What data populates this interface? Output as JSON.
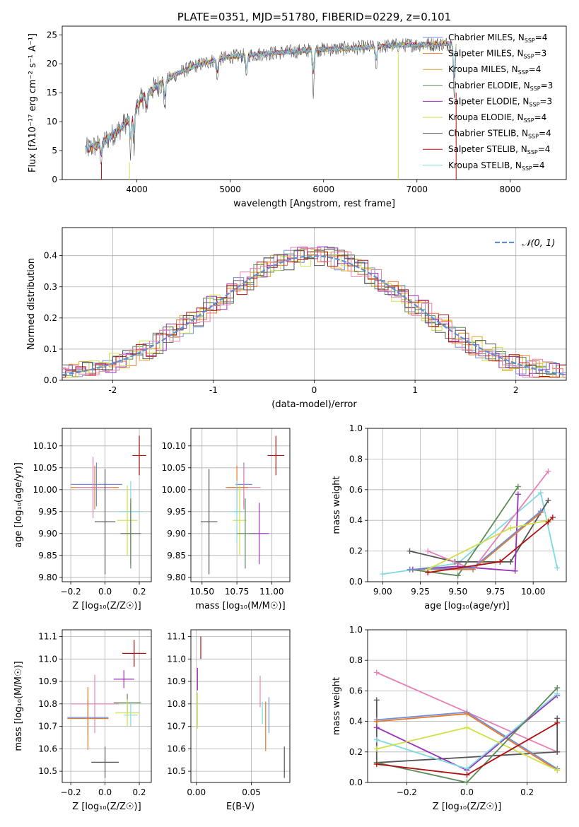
{
  "colors": {
    "chabrier_miles": "#6f8fd8",
    "salpeter_miles": "#e8782c",
    "kroupa_miles": "#e8a230",
    "chabrier_elodie": "#5e8a5a",
    "salpeter_elodie": "#9b30b8",
    "kroupa_elodie": "#cfe045",
    "chabrier_stelib": "#555555",
    "salpeter_stelib": "#b01010",
    "kroupa_stelib": "#80d8e0",
    "pink": "#e880b8",
    "normal": "#5f8fcf"
  },
  "chart_data": [
    {
      "id": "spectrum",
      "type": "line",
      "title": "PLATE=0351, MJD=51780, FIBERID=0229, z=0.101",
      "xlabel": "wavelength [Angstrom, rest frame]",
      "ylabel": "Flux [fλ10⁻¹⁷ erg cm⁻² s⁻¹ A⁻¹]",
      "xlim": [
        3200,
        8600
      ],
      "ylim": [
        0,
        26.5
      ],
      "xticks": [
        4000,
        5000,
        6000,
        7000,
        8000
      ],
      "yticks": [
        0,
        5,
        10,
        15,
        20,
        25
      ],
      "grid": false,
      "legend_position": "top-right",
      "legend": [
        {
          "label": "Chabrier MILES, N",
          "sub": "SSP",
          "tail": "=4",
          "color": "chabrier_miles"
        },
        {
          "label": "Salpeter MILES, N",
          "sub": "SSP",
          "tail": "=3",
          "color": "salpeter_miles"
        },
        {
          "label": "Kroupa MILES, N",
          "sub": "SSP",
          "tail": "=4",
          "color": "kroupa_miles"
        },
        {
          "label": "Chabrier ELODIE, N",
          "sub": "SSP",
          "tail": "=3",
          "color": "chabrier_elodie"
        },
        {
          "label": "Salpeter ELODIE, N",
          "sub": "SSP",
          "tail": "=3",
          "color": "salpeter_elodie"
        },
        {
          "label": "Kroupa ELODIE, N",
          "sub": "SSP",
          "tail": "=4",
          "color": "kroupa_elodie"
        },
        {
          "label": "Chabrier STELIB, N",
          "sub": "SSP",
          "tail": "=4",
          "color": "chabrier_stelib"
        },
        {
          "label": "Salpeter STELIB, N",
          "sub": "SSP",
          "tail": "=4",
          "color": "salpeter_stelib"
        },
        {
          "label": "Kroupa STELIB, N",
          "sub": "SSP",
          "tail": "=4",
          "color": "kroupa_stelib"
        }
      ],
      "continuum": [
        [
          3450,
          5.2
        ],
        [
          3600,
          6.0
        ],
        [
          3800,
          8.5
        ],
        [
          3950,
          11.0
        ],
        [
          4050,
          14.0
        ],
        [
          4200,
          16.0
        ],
        [
          4400,
          18.0
        ],
        [
          4600,
          19.5
        ],
        [
          4800,
          20.5
        ],
        [
          5000,
          21.2
        ],
        [
          5200,
          21.5
        ],
        [
          5400,
          21.8
        ],
        [
          5600,
          22.0
        ],
        [
          5800,
          22.3
        ],
        [
          6000,
          22.5
        ],
        [
          6200,
          22.6
        ],
        [
          6400,
          22.8
        ],
        [
          6600,
          23.0
        ],
        [
          6800,
          23.2
        ],
        [
          7000,
          23.3
        ],
        [
          7200,
          23.4
        ],
        [
          7400,
          23.5
        ]
      ],
      "dips": [
        [
          3620,
          2.5
        ],
        [
          3933,
          5.0
        ],
        [
          3969,
          4.5
        ],
        [
          4102,
          3.0
        ],
        [
          4300,
          4.0
        ],
        [
          4861,
          3.0
        ],
        [
          5175,
          3.5
        ],
        [
          5890,
          5.5
        ],
        [
          6563,
          3.0
        ],
        [
          7400,
          8.0
        ]
      ],
      "drop_lines": [
        {
          "x": 3920,
          "y_top": 3.0,
          "color": "kroupa_elodie"
        },
        {
          "x": 6800,
          "y_top": 22.0,
          "color": "kroupa_elodie"
        },
        {
          "x": 7420,
          "y_top": 15.0,
          "color": "salpeter_stelib"
        },
        {
          "x": 3620,
          "y_top": 3.0,
          "color": "salpeter_stelib"
        }
      ]
    },
    {
      "id": "residuals",
      "type": "histogram",
      "xlabel": "(data-model)/error",
      "ylabel": "Normed distribution",
      "xlim": [
        -2.5,
        2.5
      ],
      "ylim": [
        0,
        0.49
      ],
      "xticks": [
        -2,
        -1,
        0,
        1,
        2
      ],
      "yticks": [
        0.0,
        0.1,
        0.2,
        0.3,
        0.4
      ],
      "grid": true,
      "bin_width": 0.1,
      "legend": [
        {
          "label": "𝒩(0, 1)",
          "color": "normal",
          "style": "dashed"
        }
      ],
      "legend_position": "top-right"
    },
    {
      "id": "age-vs-Z",
      "type": "errorbar",
      "xlabel": "Z [log₁₀(Z/Z☉)]",
      "ylabel": "age  [log₁₀(age/yr)]",
      "xlim": [
        -0.25,
        0.27
      ],
      "ylim": [
        9.79,
        10.14
      ],
      "xticks": [
        -0.2,
        0.0,
        0.2
      ],
      "xticklabels": [
        "−0.2",
        "0.0",
        "0.2"
      ],
      "yticks": [
        9.8,
        9.85,
        9.9,
        9.95,
        10.0,
        10.05,
        10.1
      ],
      "yticklabels": [
        "9.80",
        "9.85",
        "9.90",
        "9.95",
        "10.00",
        "10.05",
        "10.10"
      ],
      "grid": true,
      "points": [
        {
          "x": 0.2,
          "xerr": 0.04,
          "y": 10.078,
          "yerr": 0.045,
          "color": "salpeter_stelib"
        },
        {
          "x": -0.05,
          "xerr": 0.15,
          "y": 10.012,
          "yerr": 0.05,
          "color": "chabrier_miles"
        },
        {
          "x": -0.06,
          "xerr": 0.14,
          "y": 10.005,
          "yerr": 0.05,
          "color": "salpeter_miles"
        },
        {
          "x": -0.07,
          "xerr": 0.1,
          "y": 10.005,
          "yerr": 0.07,
          "color": "pink"
        },
        {
          "x": 0.15,
          "xerr": 0.07,
          "y": 9.95,
          "yerr": 0.07,
          "color": "kroupa_stelib"
        },
        {
          "x": 0.13,
          "xerr": 0.06,
          "y": 9.93,
          "yerr": 0.08,
          "color": "kroupa_elodie"
        },
        {
          "x": 0.15,
          "xerr": 0.06,
          "y": 9.9,
          "yerr": 0.07,
          "color": "salpeter_elodie"
        },
        {
          "x": 0.15,
          "xerr": 0.05,
          "y": 9.9,
          "yerr": 0.08,
          "color": "chabrier_elodie"
        },
        {
          "x": 0.0,
          "xerr": 0.06,
          "y": 9.927,
          "yerr": 0.12,
          "color": "chabrier_stelib"
        }
      ]
    },
    {
      "id": "age-vs-mass",
      "type": "errorbar",
      "xlabel": "mass [log₁₀(M/M☉)]",
      "ylabel": "",
      "xlim": [
        10.42,
        11.13
      ],
      "ylim": [
        9.79,
        10.14
      ],
      "xticks": [
        10.5,
        10.75,
        11.0
      ],
      "xticklabels": [
        "10.50",
        "10.75",
        "11.00"
      ],
      "yticks": [
        9.8,
        9.85,
        9.9,
        9.95,
        10.0,
        10.05,
        10.1
      ],
      "yticklabels": [
        "9.80",
        "9.85",
        "9.90",
        "9.95",
        "10.00",
        "10.05",
        "10.10"
      ],
      "grid": true,
      "points": [
        {
          "x": 11.03,
          "xerr": 0.06,
          "y": 10.078,
          "yerr": 0.045,
          "color": "salpeter_stelib"
        },
        {
          "x": 10.8,
          "xerr": 0.06,
          "y": 10.012,
          "yerr": 0.05,
          "color": "chabrier_miles"
        },
        {
          "x": 10.8,
          "xerr": 0.12,
          "y": 10.005,
          "yerr": 0.05,
          "color": "pink"
        },
        {
          "x": 10.75,
          "xerr": 0.08,
          "y": 10.005,
          "yerr": 0.05,
          "color": "salpeter_miles"
        },
        {
          "x": 10.75,
          "xerr": 0.04,
          "y": 9.95,
          "yerr": 0.07,
          "color": "kroupa_stelib"
        },
        {
          "x": 10.77,
          "xerr": 0.05,
          "y": 9.93,
          "yerr": 0.08,
          "color": "kroupa_elodie"
        },
        {
          "x": 10.91,
          "xerr": 0.07,
          "y": 9.9,
          "yerr": 0.07,
          "color": "salpeter_elodie"
        },
        {
          "x": 10.81,
          "xerr": 0.06,
          "y": 9.9,
          "yerr": 0.08,
          "color": "chabrier_elodie"
        },
        {
          "x": 10.55,
          "xerr": 0.06,
          "y": 9.927,
          "yerr": 0.12,
          "color": "chabrier_stelib"
        }
      ]
    },
    {
      "id": "massweight-vs-age",
      "type": "line",
      "xlabel": "age  [log₁₀(age/yr)]",
      "ylabel": "mass weight",
      "xlim": [
        8.9,
        10.22
      ],
      "ylim": [
        0.0,
        1.0
      ],
      "xticks": [
        9.0,
        9.25,
        9.5,
        9.75,
        10.0
      ],
      "xticklabels": [
        "9.00",
        "9.25",
        "9.50",
        "9.75",
        "10.00"
      ],
      "yticks": [
        0.0,
        0.2,
        0.4,
        0.6,
        0.8,
        1.0
      ],
      "grid": true,
      "series": [
        {
          "color": "kroupa_stelib",
          "x": [
            9.0,
            9.5,
            10.05,
            10.16
          ],
          "y": [
            0.05,
            0.12,
            0.58,
            0.09
          ]
        },
        {
          "color": "chabrier_stelib",
          "x": [
            9.18,
            9.48,
            9.85,
            10.1
          ],
          "y": [
            0.2,
            0.13,
            0.13,
            0.53
          ]
        },
        {
          "color": "pink",
          "x": [
            9.3,
            9.6,
            10.1
          ],
          "y": [
            0.2,
            0.08,
            0.72
          ]
        },
        {
          "color": "chabrier_elodie",
          "x": [
            9.18,
            9.5,
            9.9
          ],
          "y": [
            0.08,
            0.04,
            0.62
          ]
        },
        {
          "color": "salpeter_elodie",
          "x": [
            9.2,
            9.5,
            9.88,
            9.9
          ],
          "y": [
            0.08,
            0.1,
            0.07,
            0.57
          ]
        },
        {
          "color": "salpeter_miles",
          "x": [
            9.18,
            9.6,
            10.05
          ],
          "y": [
            0.08,
            0.08,
            0.45
          ]
        },
        {
          "color": "chabrier_miles",
          "x": [
            9.18,
            9.6,
            10.05
          ],
          "y": [
            0.08,
            0.09,
            0.46
          ]
        },
        {
          "color": "kroupa_elodie",
          "x": [
            9.3,
            9.85,
            10.1
          ],
          "y": [
            0.08,
            0.35,
            0.4
          ]
        },
        {
          "color": "salpeter_stelib",
          "x": [
            9.3,
            9.78,
            10.1,
            10.13
          ],
          "y": [
            0.06,
            0.13,
            0.39,
            0.42
          ]
        }
      ]
    },
    {
      "id": "mass-vs-Z",
      "type": "errorbar",
      "xlabel": "Z [log₁₀(Z/Z☉)]",
      "ylabel": "mass [log₁₀(M/M☉)]",
      "xlim": [
        -0.25,
        0.27
      ],
      "ylim": [
        10.45,
        11.13
      ],
      "xticks": [
        -0.2,
        0.0,
        0.2
      ],
      "xticklabels": [
        "−0.2",
        "0.0",
        "0.2"
      ],
      "yticks": [
        10.5,
        10.6,
        10.7,
        10.8,
        10.9,
        11.0,
        11.1
      ],
      "yticklabels": [
        "10.5",
        "10.6",
        "10.7",
        "10.8",
        "10.9",
        "11.0",
        "11.1"
      ],
      "grid": true,
      "points": [
        {
          "x": 0.17,
          "xerr": 0.07,
          "y": 11.025,
          "yerr": 0.06,
          "color": "salpeter_stelib"
        },
        {
          "x": 0.11,
          "xerr": 0.06,
          "y": 10.91,
          "yerr": 0.04,
          "color": "salpeter_elodie"
        },
        {
          "x": -0.06,
          "xerr": 0.14,
          "y": 10.8,
          "yerr": 0.13,
          "color": "pink"
        },
        {
          "x": 0.13,
          "xerr": 0.08,
          "y": 10.805,
          "yerr": 0.04,
          "color": "chabrier_elodie"
        },
        {
          "x": 0.15,
          "xerr": 0.04,
          "y": 10.75,
          "yerr": 0.05,
          "color": "kroupa_stelib"
        },
        {
          "x": 0.13,
          "xerr": 0.07,
          "y": 10.76,
          "yerr": 0.06,
          "color": "kroupa_elodie"
        },
        {
          "x": -0.1,
          "xerr": 0.12,
          "y": 10.74,
          "yerr": 0.08,
          "color": "chabrier_miles"
        },
        {
          "x": -0.1,
          "xerr": 0.12,
          "y": 10.735,
          "yerr": 0.14,
          "color": "salpeter_miles"
        },
        {
          "x": 0.0,
          "xerr": 0.08,
          "y": 10.54,
          "yerr": 0.07,
          "color": "chabrier_stelib"
        }
      ]
    },
    {
      "id": "mass-vs-ebv",
      "type": "errorbar",
      "xlabel": "E(B-V)",
      "ylabel": "",
      "xlim": [
        -0.005,
        0.085
      ],
      "ylim": [
        10.45,
        11.13
      ],
      "xticks": [
        0.0,
        0.05
      ],
      "xticklabels": [
        "0.00",
        "0.05"
      ],
      "yticks": [
        10.5,
        10.6,
        10.7,
        10.8,
        10.9,
        11.0,
        11.1
      ],
      "yticklabels": [
        "10.5",
        "10.6",
        "10.7",
        "10.8",
        "10.9",
        "11.0",
        "11.1"
      ],
      "grid": true,
      "points": [
        {
          "x": 0.004,
          "xerr": 0,
          "y": 11.05,
          "yerr": 0.05,
          "color": "salpeter_stelib"
        },
        {
          "x": 0.001,
          "xerr": 0,
          "y": 10.91,
          "yerr": 0.05,
          "color": "salpeter_elodie"
        },
        {
          "x": 0.001,
          "xerr": 0,
          "y": 10.77,
          "yerr": 0.08,
          "color": "kroupa_elodie"
        },
        {
          "x": 0.058,
          "xerr": 0,
          "y": 10.855,
          "yerr": 0.07,
          "color": "pink"
        },
        {
          "x": 0.06,
          "xerr": 0,
          "y": 10.76,
          "yerr": 0.05,
          "color": "kroupa_stelib"
        },
        {
          "x": 0.066,
          "xerr": 0,
          "y": 10.75,
          "yerr": 0.08,
          "color": "chabrier_miles"
        },
        {
          "x": 0.063,
          "xerr": 0,
          "y": 10.7,
          "yerr": 0.11,
          "color": "salpeter_miles"
        },
        {
          "x": 0.08,
          "xerr": 0,
          "y": 10.54,
          "yerr": 0.07,
          "color": "chabrier_stelib"
        }
      ]
    },
    {
      "id": "massweight-vs-Z",
      "type": "line",
      "xlabel": "Z [log₁₀(Z/Z☉)]",
      "ylabel": "mass weight",
      "xlim": [
        -0.33,
        0.33
      ],
      "ylim": [
        0.0,
        1.0
      ],
      "xticks": [
        -0.2,
        0.0,
        0.2
      ],
      "xticklabels": [
        "−0.2",
        "0.0",
        "0.2"
      ],
      "yticks": [
        0.0,
        0.2,
        0.4,
        0.6,
        0.8,
        1.0
      ],
      "grid": true,
      "series": [
        {
          "color": "pink",
          "x": [
            -0.3,
            0.0,
            0.3
          ],
          "y": [
            0.72,
            0.46,
            0.2
          ]
        },
        {
          "color": "chabrier_stelib",
          "x": [
            -0.3,
            -0.3,
            0.3,
            0.3
          ],
          "y": [
            0.54,
            0.13,
            0.2,
            0.42
          ]
        },
        {
          "color": "chabrier_miles",
          "x": [
            -0.3,
            0.0,
            0.3
          ],
          "y": [
            0.41,
            0.46,
            0.09
          ]
        },
        {
          "color": "salpeter_miles",
          "x": [
            -0.3,
            0.0,
            0.3
          ],
          "y": [
            0.4,
            0.45,
            0.08
          ]
        },
        {
          "color": "salpeter_elodie",
          "x": [
            -0.3,
            0.0,
            0.3
          ],
          "y": [
            0.36,
            0.08,
            0.57
          ]
        },
        {
          "color": "kroupa_stelib",
          "x": [
            -0.3,
            0.0,
            0.3
          ],
          "y": [
            0.28,
            0.09,
            0.58
          ]
        },
        {
          "color": "kroupa_elodie",
          "x": [
            -0.3,
            0.0,
            0.3
          ],
          "y": [
            0.22,
            0.36,
            0.08
          ]
        },
        {
          "color": "chabrier_elodie",
          "x": [
            -0.3,
            0.0,
            0.3
          ],
          "y": [
            0.13,
            0.0,
            0.62
          ]
        },
        {
          "color": "salpeter_stelib",
          "x": [
            -0.3,
            0.0,
            0.3
          ],
          "y": [
            0.12,
            0.05,
            0.39
          ]
        }
      ]
    }
  ]
}
